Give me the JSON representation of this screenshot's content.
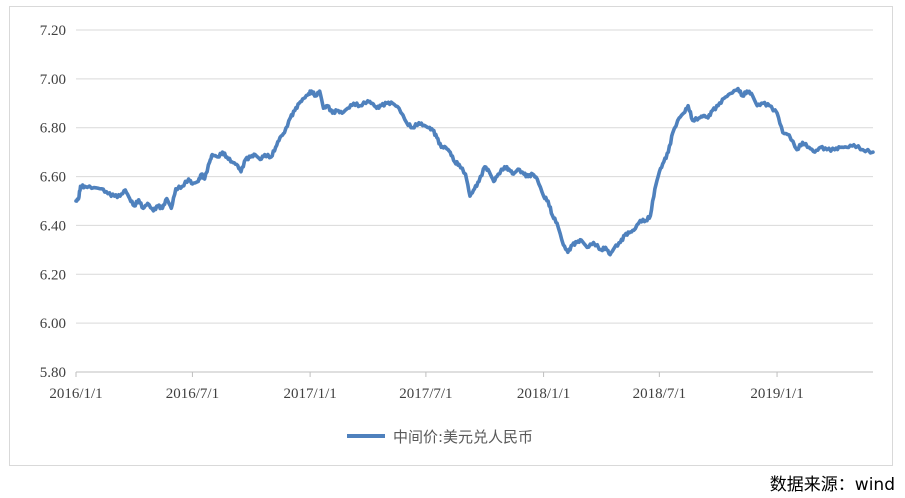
{
  "chart_data": {
    "type": "line",
    "title": "",
    "xlabel": "",
    "ylabel": "",
    "x_ticks": [
      "2016/1/1",
      "2016/7/1",
      "2017/1/1",
      "2017/7/1",
      "2018/1/1",
      "2018/7/1",
      "2019/1/1"
    ],
    "y_ticks": [
      "7.20",
      "7.00",
      "6.80",
      "6.60",
      "6.40",
      "6.20",
      "6.00",
      "5.80"
    ],
    "ylim": [
      5.8,
      7.2
    ],
    "xlim": [
      "2016-01-01",
      "2019-05-31"
    ],
    "grid": true,
    "legend_position": "bottom",
    "series": [
      {
        "name": "中间价:美元兑人民币",
        "color": "#4f81bd",
        "points": [
          [
            "2016-01-01",
            6.5
          ],
          [
            "2016-01-05",
            6.51
          ],
          [
            "2016-01-08",
            6.56
          ],
          [
            "2016-01-15",
            6.56
          ],
          [
            "2016-01-29",
            6.555
          ],
          [
            "2016-02-10",
            6.55
          ],
          [
            "2016-02-20",
            6.53
          ],
          [
            "2016-03-01",
            6.52
          ],
          [
            "2016-03-10",
            6.52
          ],
          [
            "2016-03-18",
            6.545
          ],
          [
            "2016-03-25",
            6.51
          ],
          [
            "2016-04-01",
            6.48
          ],
          [
            "2016-04-08",
            6.505
          ],
          [
            "2016-04-15",
            6.47
          ],
          [
            "2016-04-22",
            6.49
          ],
          [
            "2016-05-01",
            6.46
          ],
          [
            "2016-05-08",
            6.48
          ],
          [
            "2016-05-15",
            6.47
          ],
          [
            "2016-05-22",
            6.51
          ],
          [
            "2016-05-29",
            6.47
          ],
          [
            "2016-06-05",
            6.55
          ],
          [
            "2016-06-15",
            6.56
          ],
          [
            "2016-06-25",
            6.59
          ],
          [
            "2016-07-01",
            6.57
          ],
          [
            "2016-07-10",
            6.58
          ],
          [
            "2016-07-15",
            6.61
          ],
          [
            "2016-07-20",
            6.59
          ],
          [
            "2016-07-28",
            6.66
          ],
          [
            "2016-08-01",
            6.69
          ],
          [
            "2016-08-10",
            6.68
          ],
          [
            "2016-08-17",
            6.7
          ],
          [
            "2016-08-24",
            6.68
          ],
          [
            "2016-09-01",
            6.66
          ],
          [
            "2016-09-08",
            6.65
          ],
          [
            "2016-09-15",
            6.62
          ],
          [
            "2016-09-22",
            6.67
          ],
          [
            "2016-09-30",
            6.68
          ],
          [
            "2016-10-07",
            6.69
          ],
          [
            "2016-10-15",
            6.67
          ],
          [
            "2016-10-22",
            6.69
          ],
          [
            "2016-11-01",
            6.68
          ],
          [
            "2016-11-08",
            6.72
          ],
          [
            "2016-11-15",
            6.76
          ],
          [
            "2016-11-22",
            6.78
          ],
          [
            "2016-12-01",
            6.84
          ],
          [
            "2016-12-08",
            6.87
          ],
          [
            "2016-12-15",
            6.9
          ],
          [
            "2016-12-22",
            6.92
          ],
          [
            "2016-12-30",
            6.94
          ],
          [
            "2017-01-03",
            6.95
          ],
          [
            "2017-01-10",
            6.93
          ],
          [
            "2017-01-16",
            6.95
          ],
          [
            "2017-01-22",
            6.88
          ],
          [
            "2017-01-28",
            6.89
          ],
          [
            "2017-02-05",
            6.86
          ],
          [
            "2017-02-12",
            6.87
          ],
          [
            "2017-02-20",
            6.86
          ],
          [
            "2017-03-01",
            6.88
          ],
          [
            "2017-03-10",
            6.9
          ],
          [
            "2017-03-20",
            6.89
          ],
          [
            "2017-04-01",
            6.91
          ],
          [
            "2017-04-08",
            6.9
          ],
          [
            "2017-04-15",
            6.88
          ],
          [
            "2017-04-22",
            6.89
          ],
          [
            "2017-05-01",
            6.9
          ],
          [
            "2017-05-10",
            6.9
          ],
          [
            "2017-05-20",
            6.88
          ],
          [
            "2017-06-01",
            6.82
          ],
          [
            "2017-06-10",
            6.8
          ],
          [
            "2017-06-20",
            6.82
          ],
          [
            "2017-06-28",
            6.81
          ],
          [
            "2017-07-05",
            6.8
          ],
          [
            "2017-07-12",
            6.79
          ],
          [
            "2017-07-18",
            6.76
          ],
          [
            "2017-07-25",
            6.72
          ],
          [
            "2017-08-01",
            6.72
          ],
          [
            "2017-08-08",
            6.7
          ],
          [
            "2017-08-15",
            6.66
          ],
          [
            "2017-08-22",
            6.65
          ],
          [
            "2017-09-01",
            6.61
          ],
          [
            "2017-09-08",
            6.52
          ],
          [
            "2017-09-15",
            6.55
          ],
          [
            "2017-09-22",
            6.58
          ],
          [
            "2017-10-01",
            6.64
          ],
          [
            "2017-10-08",
            6.62
          ],
          [
            "2017-10-15",
            6.58
          ],
          [
            "2017-10-22",
            6.61
          ],
          [
            "2017-11-01",
            6.64
          ],
          [
            "2017-11-08",
            6.63
          ],
          [
            "2017-11-15",
            6.61
          ],
          [
            "2017-11-22",
            6.63
          ],
          [
            "2017-12-01",
            6.61
          ],
          [
            "2017-12-08",
            6.6
          ],
          [
            "2017-12-15",
            6.61
          ],
          [
            "2017-12-22",
            6.59
          ],
          [
            "2018-01-01",
            6.52
          ],
          [
            "2018-01-08",
            6.5
          ],
          [
            "2018-01-15",
            6.44
          ],
          [
            "2018-01-22",
            6.41
          ],
          [
            "2018-02-01",
            6.32
          ],
          [
            "2018-02-08",
            6.29
          ],
          [
            "2018-02-15",
            6.32
          ],
          [
            "2018-02-22",
            6.33
          ],
          [
            "2018-03-01",
            6.34
          ],
          [
            "2018-03-10",
            6.31
          ],
          [
            "2018-03-20",
            6.33
          ],
          [
            "2018-04-01",
            6.3
          ],
          [
            "2018-04-08",
            6.31
          ],
          [
            "2018-04-15",
            6.28
          ],
          [
            "2018-04-22",
            6.31
          ],
          [
            "2018-05-01",
            6.33
          ],
          [
            "2018-05-08",
            6.36
          ],
          [
            "2018-05-15",
            6.37
          ],
          [
            "2018-05-22",
            6.38
          ],
          [
            "2018-06-01",
            6.42
          ],
          [
            "2018-06-10",
            6.42
          ],
          [
            "2018-06-17",
            6.44
          ],
          [
            "2018-06-24",
            6.55
          ],
          [
            "2018-07-01",
            6.62
          ],
          [
            "2018-07-08",
            6.66
          ],
          [
            "2018-07-15",
            6.7
          ],
          [
            "2018-07-22",
            6.78
          ],
          [
            "2018-08-01",
            6.84
          ],
          [
            "2018-08-08",
            6.86
          ],
          [
            "2018-08-15",
            6.89
          ],
          [
            "2018-08-22",
            6.83
          ],
          [
            "2018-09-01",
            6.84
          ],
          [
            "2018-09-08",
            6.85
          ],
          [
            "2018-09-15",
            6.84
          ],
          [
            "2018-09-22",
            6.87
          ],
          [
            "2018-10-01",
            6.89
          ],
          [
            "2018-10-10",
            6.92
          ],
          [
            "2018-10-20",
            6.94
          ],
          [
            "2018-11-01",
            6.96
          ],
          [
            "2018-11-08",
            6.93
          ],
          [
            "2018-11-15",
            6.95
          ],
          [
            "2018-11-22",
            6.94
          ],
          [
            "2018-12-01",
            6.89
          ],
          [
            "2018-12-10",
            6.9
          ],
          [
            "2018-12-20",
            6.89
          ],
          [
            "2019-01-01",
            6.86
          ],
          [
            "2019-01-10",
            6.78
          ],
          [
            "2019-01-20",
            6.77
          ],
          [
            "2019-02-01",
            6.71
          ],
          [
            "2019-02-10",
            6.74
          ],
          [
            "2019-02-20",
            6.72
          ],
          [
            "2019-03-01",
            6.7
          ],
          [
            "2019-03-10",
            6.72
          ],
          [
            "2019-03-20",
            6.71
          ],
          [
            "2019-04-01",
            6.71
          ],
          [
            "2019-04-10",
            6.72
          ],
          [
            "2019-04-20",
            6.72
          ],
          [
            "2019-05-01",
            6.73
          ],
          [
            "2019-05-15",
            6.71
          ],
          [
            "2019-05-31",
            6.7
          ]
        ]
      }
    ]
  },
  "source_note": "数据来源：wind"
}
